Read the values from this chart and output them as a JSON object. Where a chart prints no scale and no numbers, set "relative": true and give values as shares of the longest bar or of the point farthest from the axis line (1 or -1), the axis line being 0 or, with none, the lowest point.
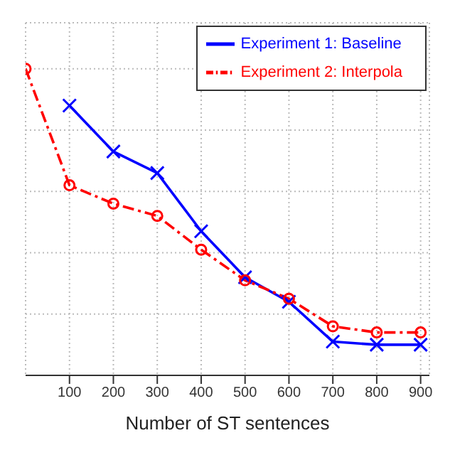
{
  "chart_data": {
    "type": "line",
    "xlabel": "Number of ST sentences",
    "relative": true,
    "x": [
      100,
      200,
      300,
      400,
      500,
      600,
      700,
      800,
      900
    ],
    "xlim": [
      0,
      920
    ],
    "xticks": [
      100,
      200,
      300,
      400,
      500,
      600,
      700,
      800,
      900
    ],
    "grid": true,
    "legend": "top right",
    "series": [
      {
        "name": "Experiment 1: Baseline",
        "color": "#0000ff",
        "marker": "cross",
        "line_style": "solid",
        "values": [
          0.88,
          0.73,
          0.66,
          0.47,
          0.32,
          0.24,
          0.11,
          0.1,
          0.1
        ]
      },
      {
        "name": "Experiment 2: Interpola",
        "color": "#ff0000",
        "marker": "circle",
        "line_style": "dashed",
        "x": [
          0,
          100,
          200,
          300,
          400,
          500,
          600,
          700,
          800,
          900
        ],
        "values": [
          1,
          0.62,
          0.56,
          0.52,
          0.41,
          0.31,
          0.25,
          0.16,
          0.14,
          0.14
        ]
      }
    ]
  }
}
